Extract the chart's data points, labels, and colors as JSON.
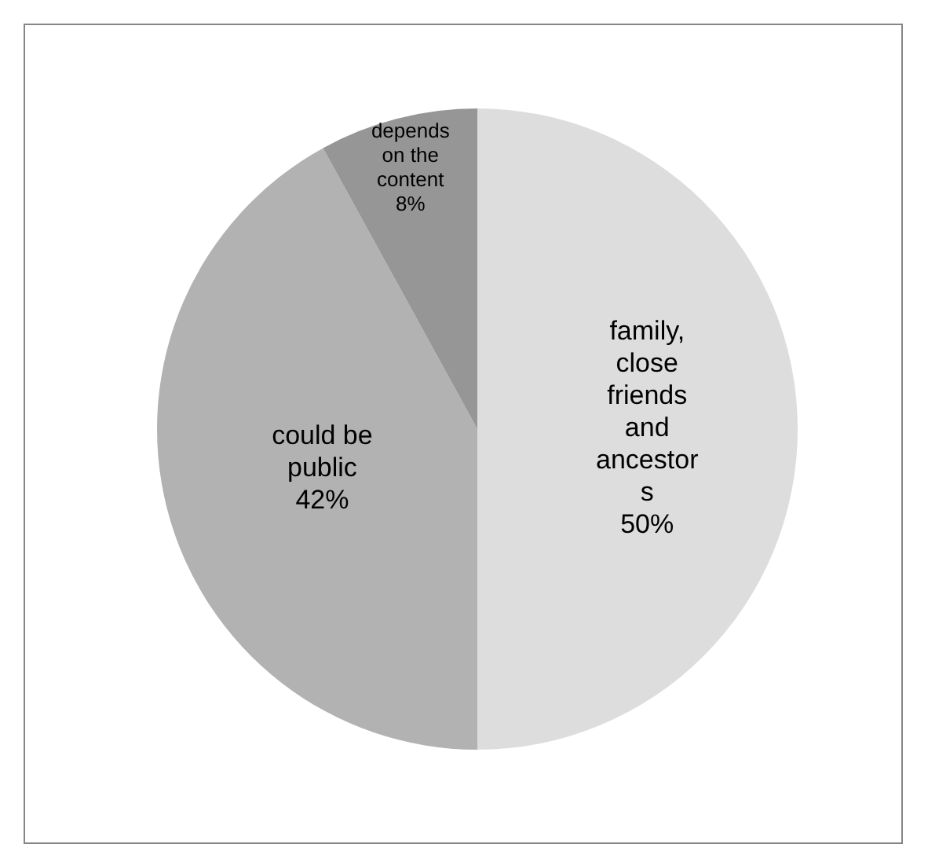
{
  "chart_data": {
    "type": "pie",
    "categories": [
      "family, close friends and ancestors",
      "could be public",
      "depends on the content"
    ],
    "values": [
      50,
      42,
      8
    ],
    "colors": [
      "#dddddd",
      "#b2b2b2",
      "#969696"
    ],
    "value_labels": [
      "50%",
      "42%",
      "8%"
    ],
    "legend": false
  }
}
